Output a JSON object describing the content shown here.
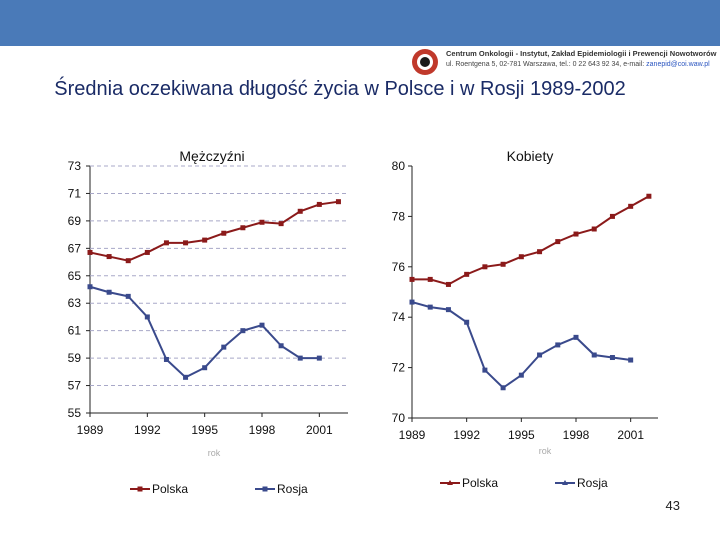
{
  "logo": {
    "icon": "oncology-center-logo",
    "line1": "Centrum Onkologii - Instytut, Zakład Epidemiologii i Prewencji Nowotworów",
    "line2": "ul. Roentgena 5, 02-781 Warszawa, tel.: 0 22 643 92 34, e-mail:",
    "email": "zanepid@coi.waw.pl"
  },
  "title": "Średnia oczekiwana długość życia w Polsce i w Rosji 1989-2002",
  "page_number": "43",
  "colors": {
    "topbar": "#4a7ab8",
    "polska": "#8b1a1a",
    "rosja": "#3a4a8c",
    "grid": "#a8a8c8"
  },
  "chart_data": [
    {
      "type": "line",
      "title": "Mężczyźni",
      "xlabel": "rok",
      "ylabel": "",
      "x": [
        1989,
        1990,
        1991,
        1992,
        1993,
        1994,
        1995,
        1996,
        1997,
        1998,
        1999,
        2000,
        2001,
        2002
      ],
      "xticks": [
        "1989",
        "1992",
        "1995",
        "1998",
        "2001"
      ],
      "yticks": [
        "73",
        "71",
        "69",
        "67",
        "65",
        "63",
        "61",
        "59",
        "57",
        "55"
      ],
      "ylim": [
        55,
        73
      ],
      "grid": "horizontal dashed",
      "legend_position": "bottom",
      "series": [
        {
          "name": "Polska",
          "values": [
            66.7,
            66.4,
            66.1,
            66.7,
            67.4,
            67.4,
            67.6,
            68.1,
            68.5,
            68.9,
            68.8,
            69.7,
            70.2,
            70.4
          ]
        },
        {
          "name": "Rosja",
          "values": [
            64.2,
            63.8,
            63.5,
            62.0,
            58.9,
            57.6,
            58.3,
            59.8,
            61.0,
            61.4,
            59.9,
            59.0,
            59.0,
            null
          ]
        }
      ]
    },
    {
      "type": "line",
      "title": "Kobiety",
      "xlabel": "rok",
      "ylabel": "",
      "x": [
        1989,
        1990,
        1991,
        1992,
        1993,
        1994,
        1995,
        1996,
        1997,
        1998,
        1999,
        2000,
        2001,
        2002
      ],
      "xticks": [
        "1989",
        "1992",
        "1995",
        "1998",
        "2001"
      ],
      "yticks": [
        "80",
        "78",
        "76",
        "74",
        "72",
        "70"
      ],
      "ylim": [
        70,
        80
      ],
      "grid": "none",
      "legend_position": "bottom",
      "series": [
        {
          "name": "Polska",
          "values": [
            75.5,
            75.5,
            75.3,
            75.7,
            76.0,
            76.1,
            76.4,
            76.6,
            77.0,
            77.3,
            77.5,
            78.0,
            78.4,
            78.8
          ]
        },
        {
          "name": "Rosja",
          "values": [
            74.6,
            74.4,
            74.3,
            73.8,
            71.9,
            71.2,
            71.7,
            72.5,
            72.9,
            73.2,
            72.5,
            72.4,
            72.3,
            null
          ]
        }
      ]
    }
  ]
}
